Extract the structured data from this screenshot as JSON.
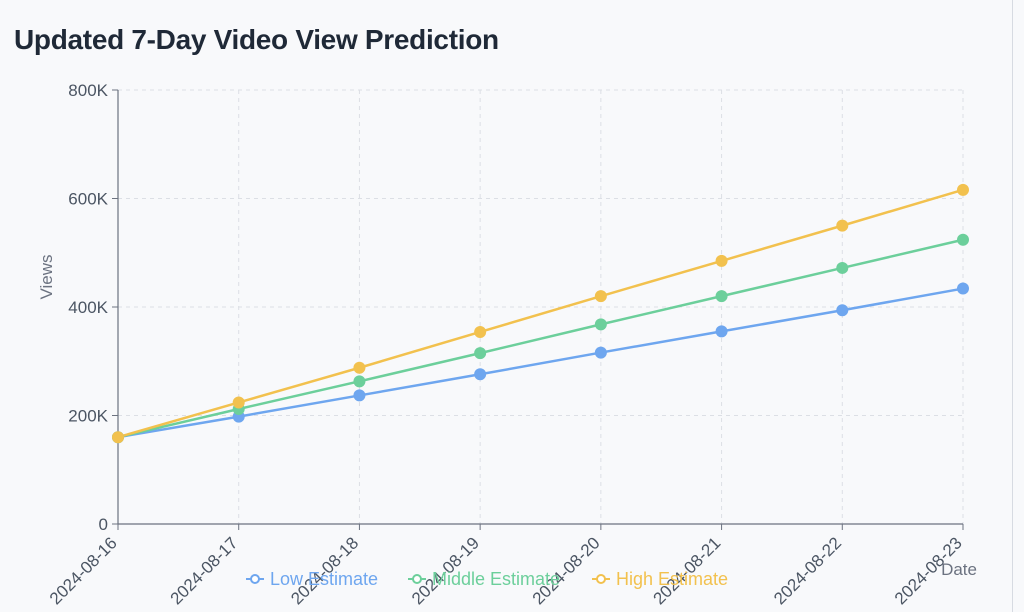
{
  "title": "Updated 7-Day Video View Prediction",
  "chart_data": {
    "type": "line",
    "title": "Updated 7-Day Video View Prediction",
    "xlabel": "Date",
    "ylabel": "Views",
    "categories": [
      "2024-08-16",
      "2024-08-17",
      "2024-08-18",
      "2024-08-19",
      "2024-08-20",
      "2024-08-21",
      "2024-08-22",
      "2024-08-23"
    ],
    "ylim": [
      0,
      800000
    ],
    "yticks": [
      0,
      200000,
      400000,
      600000,
      800000
    ],
    "ytick_labels": [
      "0",
      "200K",
      "400K",
      "600K",
      "800K"
    ],
    "grid": true,
    "legend_position": "bottom",
    "series": [
      {
        "name": "Low Estimate",
        "color": "#6ea6ef",
        "values": [
          160000,
          198000,
          237000,
          276000,
          316000,
          355000,
          394000,
          434000
        ]
      },
      {
        "name": "Middle Estimate",
        "color": "#6ccf9b",
        "values": [
          160000,
          212000,
          263000,
          315000,
          368000,
          420000,
          472000,
          524000
        ]
      },
      {
        "name": "High Estimate",
        "color": "#f2c14e",
        "values": [
          160000,
          224000,
          288000,
          354000,
          420000,
          485000,
          550000,
          616000
        ]
      }
    ]
  }
}
